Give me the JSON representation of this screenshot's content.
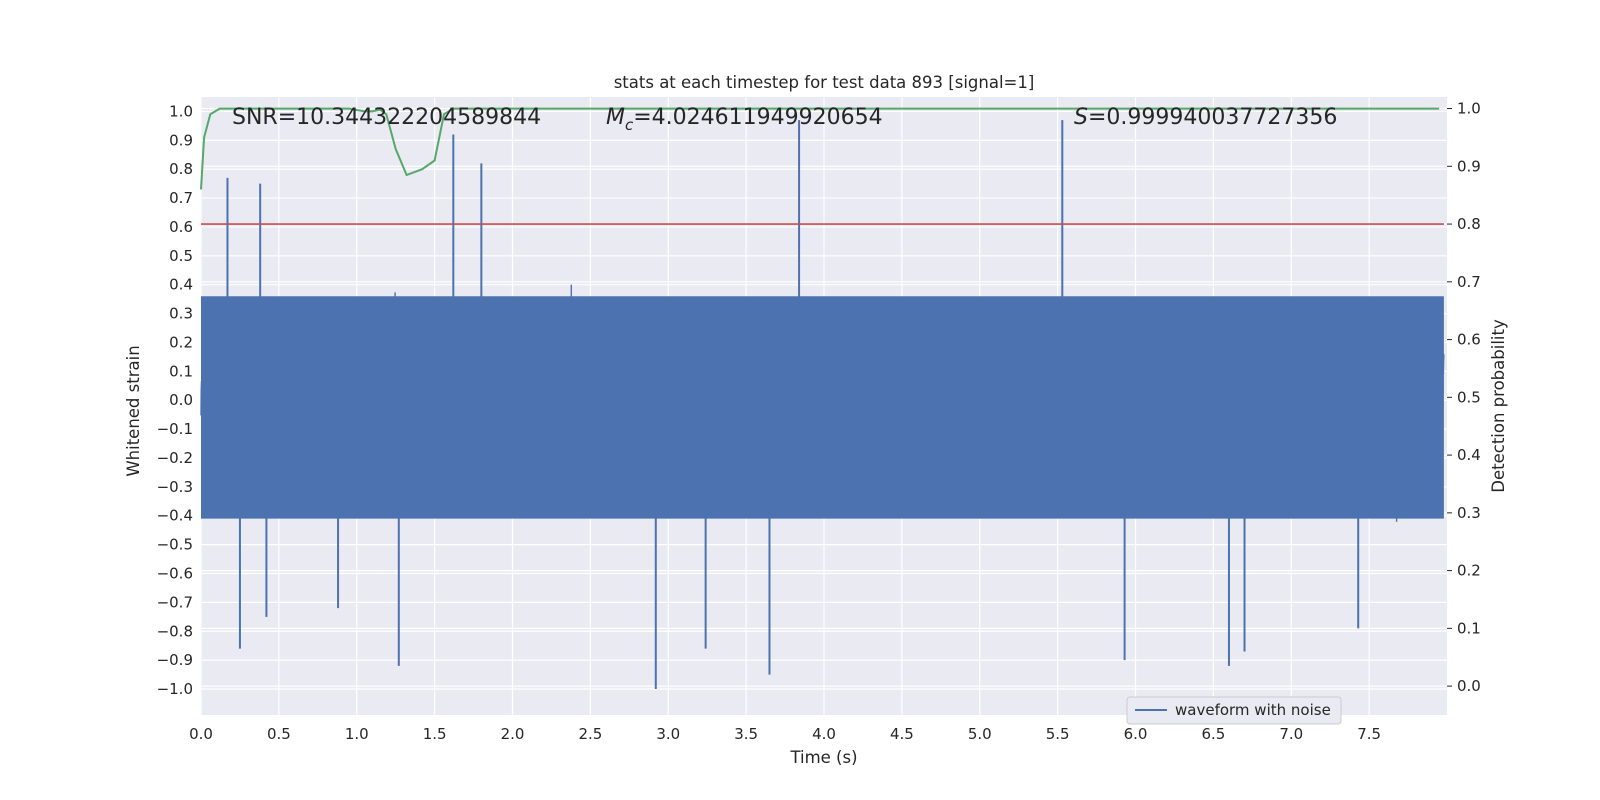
{
  "chart_data": {
    "type": "line",
    "title": "stats at each timestep for test data 893 [signal=1]",
    "xlabel": "Time (s)",
    "ylabel_left": "Whitened strain",
    "ylabel_right": "Detection probability",
    "xlim": [
      0.0,
      8.0
    ],
    "ylim_left": [
      -1.09,
      1.05
    ],
    "ylim_right": [
      -0.05,
      1.02
    ],
    "x_ticks": [
      "0.0",
      "0.5",
      "1.0",
      "1.5",
      "2.0",
      "2.5",
      "3.0",
      "3.5",
      "4.0",
      "4.5",
      "5.0",
      "5.5",
      "6.0",
      "6.5",
      "7.0",
      "7.5"
    ],
    "y_ticks_left": [
      "1.0",
      "0.9",
      "0.8",
      "0.7",
      "0.6",
      "0.5",
      "0.4",
      "0.3",
      "0.2",
      "0.1",
      "0.0",
      "−0.1",
      "−0.2",
      "−0.3",
      "−0.4",
      "−0.5",
      "−0.6",
      "−0.7",
      "−0.8",
      "−0.9",
      "−1.0"
    ],
    "y_ticks_right": [
      "1.0",
      "0.9",
      "0.8",
      "0.7",
      "0.6",
      "0.5",
      "0.4",
      "0.3",
      "0.2",
      "0.1",
      "0.0"
    ],
    "threshold": 0.8,
    "annotations": {
      "snr": "SNR=10.344322204589844",
      "mc_symbol": "M",
      "mc_subscript": "c",
      "mc_value": "=4.024611949920654",
      "s_symbol": "S",
      "s_value": "=0.999940037727356"
    },
    "legend": {
      "label": "waveform with noise",
      "position": "lower-right"
    },
    "series": [
      {
        "name": "waveform with noise",
        "color": "#4c72b0",
        "axis": "left",
        "kind": "noise-envelope",
        "typical_envelope": 0.45,
        "peaks": [
          {
            "x": 0.17,
            "y": 0.77
          },
          {
            "x": 0.25,
            "y": -0.86
          },
          {
            "x": 0.38,
            "y": 0.75
          },
          {
            "x": 0.42,
            "y": -0.75
          },
          {
            "x": 0.88,
            "y": -0.72
          },
          {
            "x": 1.27,
            "y": -0.92
          },
          {
            "x": 1.62,
            "y": 0.92
          },
          {
            "x": 1.8,
            "y": 0.82
          },
          {
            "x": 2.92,
            "y": -1.0
          },
          {
            "x": 3.24,
            "y": -0.86
          },
          {
            "x": 3.65,
            "y": -0.95
          },
          {
            "x": 3.84,
            "y": 0.97
          },
          {
            "x": 5.53,
            "y": 0.97
          },
          {
            "x": 5.93,
            "y": -0.9
          },
          {
            "x": 6.6,
            "y": -0.92
          },
          {
            "x": 6.7,
            "y": -0.87
          },
          {
            "x": 7.43,
            "y": -0.79
          }
        ]
      },
      {
        "name": "detection probability",
        "color": "#55a868",
        "axis": "right",
        "x": [
          0.0,
          0.02,
          0.06,
          0.12,
          0.2,
          0.4,
          0.6,
          0.8,
          0.95,
          1.05,
          1.1,
          1.15,
          1.19,
          1.25,
          1.32,
          1.42,
          1.5,
          1.56,
          1.62,
          1.8,
          2.5,
          3.0,
          3.5,
          4.0,
          4.5,
          5.0,
          5.5,
          6.0,
          6.5,
          7.0,
          7.5,
          7.95
        ],
        "y": [
          0.86,
          0.95,
          0.99,
          1.0,
          1.0,
          1.0,
          1.0,
          1.0,
          1.0,
          0.995,
          0.995,
          0.998,
          0.99,
          0.93,
          0.885,
          0.895,
          0.91,
          0.99,
          1.0,
          1.0,
          1.0,
          1.0,
          1.0,
          1.0,
          1.0,
          1.0,
          1.0,
          1.0,
          1.0,
          1.0,
          1.0,
          1.0
        ]
      }
    ]
  },
  "colors": {
    "plot_bg": "#eaeaf2",
    "grid": "#ffffff",
    "waveform": "#4c72b0",
    "probability": "#55a868",
    "threshold": "#c44e52"
  }
}
